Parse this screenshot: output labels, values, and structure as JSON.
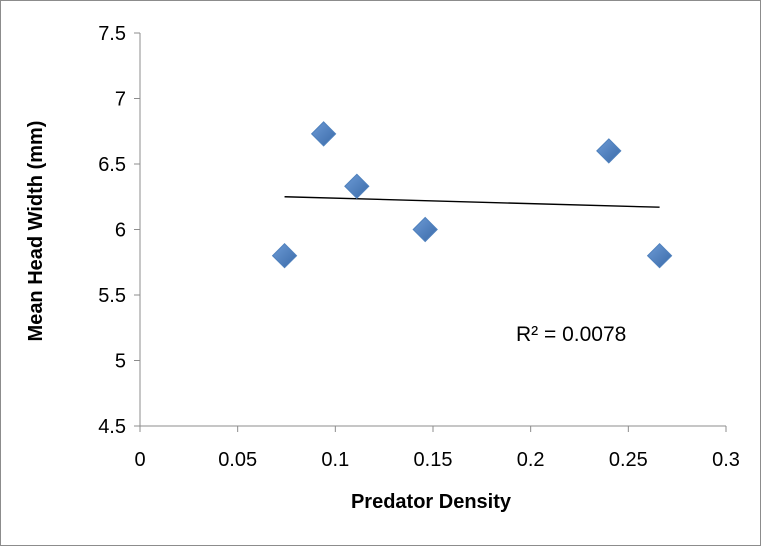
{
  "chart_data": {
    "type": "scatter",
    "xlabel": "Predator Density",
    "ylabel": "Mean Head Width (mm)",
    "xlim": [
      0,
      0.3
    ],
    "ylim": [
      4.5,
      7.5
    ],
    "x_ticks": [
      0,
      0.05,
      0.1,
      0.15,
      0.2,
      0.25,
      0.3
    ],
    "x_tick_labels": [
      "0",
      "0.05",
      "0.1",
      "0.15",
      "0.2",
      "0.25",
      "0.3"
    ],
    "y_ticks": [
      4.5,
      5,
      5.5,
      6,
      6.5,
      7,
      7.5
    ],
    "y_tick_labels": [
      "4.5",
      "5",
      "5.5",
      "6",
      "6.5",
      "7",
      "7.5"
    ],
    "series": [
      {
        "points": [
          {
            "x": 0.074,
            "y": 5.8
          },
          {
            "x": 0.094,
            "y": 6.73
          },
          {
            "x": 0.111,
            "y": 6.33
          },
          {
            "x": 0.146,
            "y": 6.0
          },
          {
            "x": 0.24,
            "y": 6.6
          },
          {
            "x": 0.266,
            "y": 5.8
          }
        ],
        "marker": "diamond",
        "color": "#4f81bd"
      }
    ],
    "trendline": {
      "type": "linear",
      "x_start": 0.074,
      "y_start": 6.25,
      "x_end": 0.266,
      "y_end": 6.17,
      "color": "#000000"
    },
    "annotation": "R² = 0.0078",
    "grid": false,
    "legend": "none"
  }
}
